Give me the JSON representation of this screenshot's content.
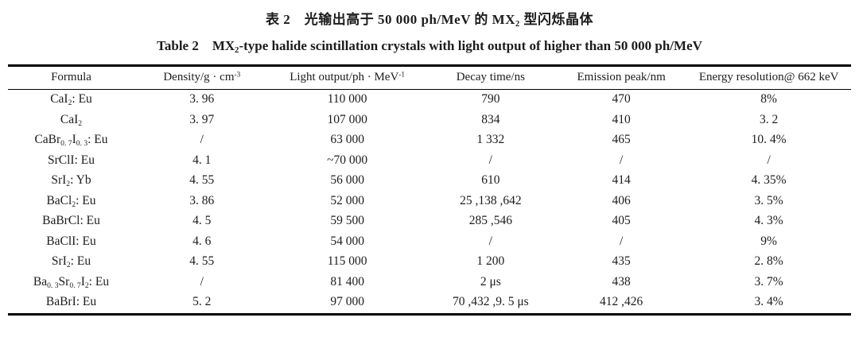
{
  "caption_cn": [
    {
      "t": "表 2　光输出高于 50 000 ph/MeV 的 MX"
    },
    {
      "sub": "2"
    },
    {
      "t": " 型闪烁晶体"
    }
  ],
  "caption_en": [
    {
      "t": "Table 2　MX"
    },
    {
      "sub": "2"
    },
    {
      "t": "-type halide scintillation crystals with light output of higher than 50 000 ph/MeV"
    }
  ],
  "table": {
    "columns": [
      {
        "label": [
          {
            "t": "Formula"
          }
        ]
      },
      {
        "label": [
          {
            "t": "Density/g · cm"
          },
          {
            "sup": "-3"
          }
        ]
      },
      {
        "label": [
          {
            "t": "Light output/ph · MeV"
          },
          {
            "sup": "-1"
          }
        ]
      },
      {
        "label": [
          {
            "t": "Decay time/ns"
          }
        ]
      },
      {
        "label": [
          {
            "t": "Emission peak/nm"
          }
        ]
      },
      {
        "label": [
          {
            "t": "Energy resolution@ 662 keV"
          }
        ]
      }
    ],
    "rows": [
      {
        "formula": [
          {
            "t": "CaI"
          },
          {
            "sub": "2"
          },
          {
            "t": ": Eu"
          }
        ],
        "density": "3. 96",
        "light_output": "110 000",
        "decay_time": "790",
        "emission_peak": "470",
        "energy_resolution": "8%"
      },
      {
        "formula": [
          {
            "t": "CaI"
          },
          {
            "sub": "2"
          }
        ],
        "density": "3. 97",
        "light_output": "107 000",
        "decay_time": "834",
        "emission_peak": "410",
        "energy_resolution": "3. 2"
      },
      {
        "formula": [
          {
            "t": "CaBr"
          },
          {
            "sub": "0. 7"
          },
          {
            "t": "I"
          },
          {
            "sub": "0. 3"
          },
          {
            "t": ": Eu"
          }
        ],
        "density": "/",
        "light_output": "63 000",
        "decay_time": "1 332",
        "emission_peak": "465",
        "energy_resolution": "10. 4%"
      },
      {
        "formula": [
          {
            "t": "SrClI: Eu"
          }
        ],
        "density": "4. 1",
        "light_output": "~70 000",
        "decay_time": "/",
        "emission_peak": "/",
        "energy_resolution": "/"
      },
      {
        "formula": [
          {
            "t": "SrI"
          },
          {
            "sub": "2"
          },
          {
            "t": ": Yb"
          }
        ],
        "density": "4. 55",
        "light_output": "56 000",
        "decay_time": "610",
        "emission_peak": "414",
        "energy_resolution": "4. 35%"
      },
      {
        "formula": [
          {
            "t": "BaCl"
          },
          {
            "sub": "2"
          },
          {
            "t": ": Eu"
          }
        ],
        "density": "3. 86",
        "light_output": "52 000",
        "decay_time": "25 ,138 ,642",
        "emission_peak": "406",
        "energy_resolution": "3. 5%"
      },
      {
        "formula": [
          {
            "t": "BaBrCl: Eu"
          }
        ],
        "density": "4. 5",
        "light_output": "59 500",
        "decay_time": "285 ,546",
        "emission_peak": "405",
        "energy_resolution": "4. 3%"
      },
      {
        "formula": [
          {
            "t": "BaClI: Eu"
          }
        ],
        "density": "4. 6",
        "light_output": "54 000",
        "decay_time": "/",
        "emission_peak": "/",
        "energy_resolution": "9%"
      },
      {
        "formula": [
          {
            "t": "SrI"
          },
          {
            "sub": "2"
          },
          {
            "t": ": Eu"
          }
        ],
        "density": "4. 55",
        "light_output": "115 000",
        "decay_time": "1 200",
        "emission_peak": "435",
        "energy_resolution": "2. 8%"
      },
      {
        "formula": [
          {
            "t": "Ba"
          },
          {
            "sub": "0. 3"
          },
          {
            "t": "Sr"
          },
          {
            "sub": "0. 7"
          },
          {
            "t": "I"
          },
          {
            "sub": "2"
          },
          {
            "t": ": Eu"
          }
        ],
        "density": "/",
        "light_output": "81 400",
        "decay_time": "2 μs",
        "emission_peak": "438",
        "energy_resolution": "3. 7%"
      },
      {
        "formula": [
          {
            "t": "BaBrI: Eu"
          }
        ],
        "density": "5. 2",
        "light_output": "97 000",
        "decay_time": "70 ,432 ,9. 5 μs",
        "emission_peak": "412 ,426",
        "energy_resolution": "3. 4%"
      }
    ]
  }
}
